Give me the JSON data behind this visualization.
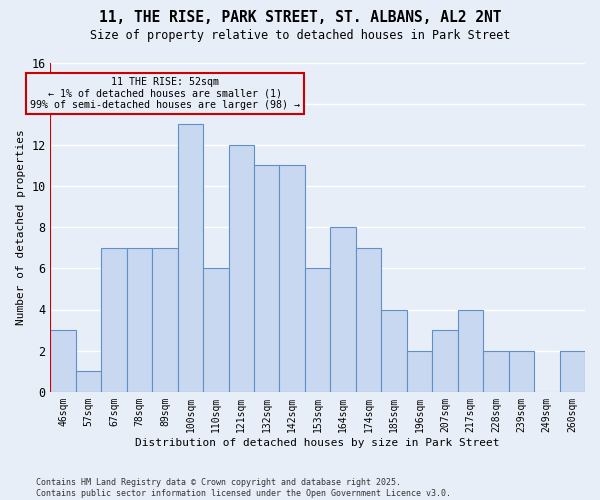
{
  "title": "11, THE RISE, PARK STREET, ST. ALBANS, AL2 2NT",
  "subtitle": "Size of property relative to detached houses in Park Street",
  "xlabel": "Distribution of detached houses by size in Park Street",
  "ylabel": "Number of detached properties",
  "bins": [
    "46sqm",
    "57sqm",
    "67sqm",
    "78sqm",
    "89sqm",
    "100sqm",
    "110sqm",
    "121sqm",
    "132sqm",
    "142sqm",
    "153sqm",
    "164sqm",
    "174sqm",
    "185sqm",
    "196sqm",
    "207sqm",
    "217sqm",
    "228sqm",
    "239sqm",
    "249sqm",
    "260sqm"
  ],
  "values": [
    3,
    1,
    7,
    7,
    7,
    13,
    6,
    12,
    11,
    11,
    6,
    8,
    7,
    4,
    2,
    3,
    4,
    2,
    2,
    0,
    2
  ],
  "bar_color": "#c8d8f0",
  "bar_edge_color": "#6090c8",
  "background_color": "#e8eef8",
  "grid_color": "#ffffff",
  "annotation_box_color": "#cc0000",
  "annotation_line1": "11 THE RISE: 52sqm",
  "annotation_line2": "← 1% of detached houses are smaller (1)",
  "annotation_line3": "99% of semi-detached houses are larger (98) →",
  "footer_line1": "Contains HM Land Registry data © Crown copyright and database right 2025.",
  "footer_line2": "Contains public sector information licensed under the Open Government Licence v3.0.",
  "ylim": [
    0,
    16
  ],
  "yticks": [
    0,
    2,
    4,
    6,
    8,
    10,
    12,
    14,
    16
  ],
  "red_line_x": 0
}
